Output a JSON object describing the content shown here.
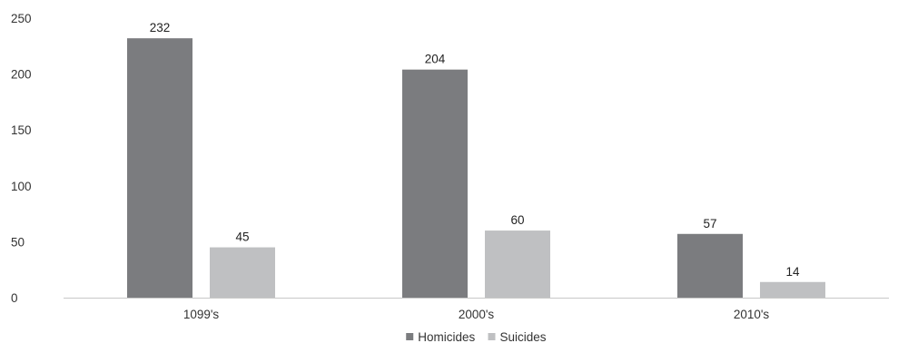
{
  "chart_data": {
    "type": "bar",
    "categories": [
      "1099's",
      "2000's",
      "2010's"
    ],
    "series": [
      {
        "name": "Homicides",
        "values": [
          232,
          204,
          57
        ],
        "color": "#7b7c7f"
      },
      {
        "name": "Suicides",
        "values": [
          45,
          60,
          14
        ],
        "color": "#bfc0c2"
      }
    ],
    "ylim": [
      0,
      250
    ],
    "yticks": [
      0,
      50,
      100,
      150,
      200,
      250
    ],
    "grid": false,
    "legend_position": "bottom",
    "data_labels": true,
    "title": "",
    "xlabel": "",
    "ylabel": ""
  }
}
